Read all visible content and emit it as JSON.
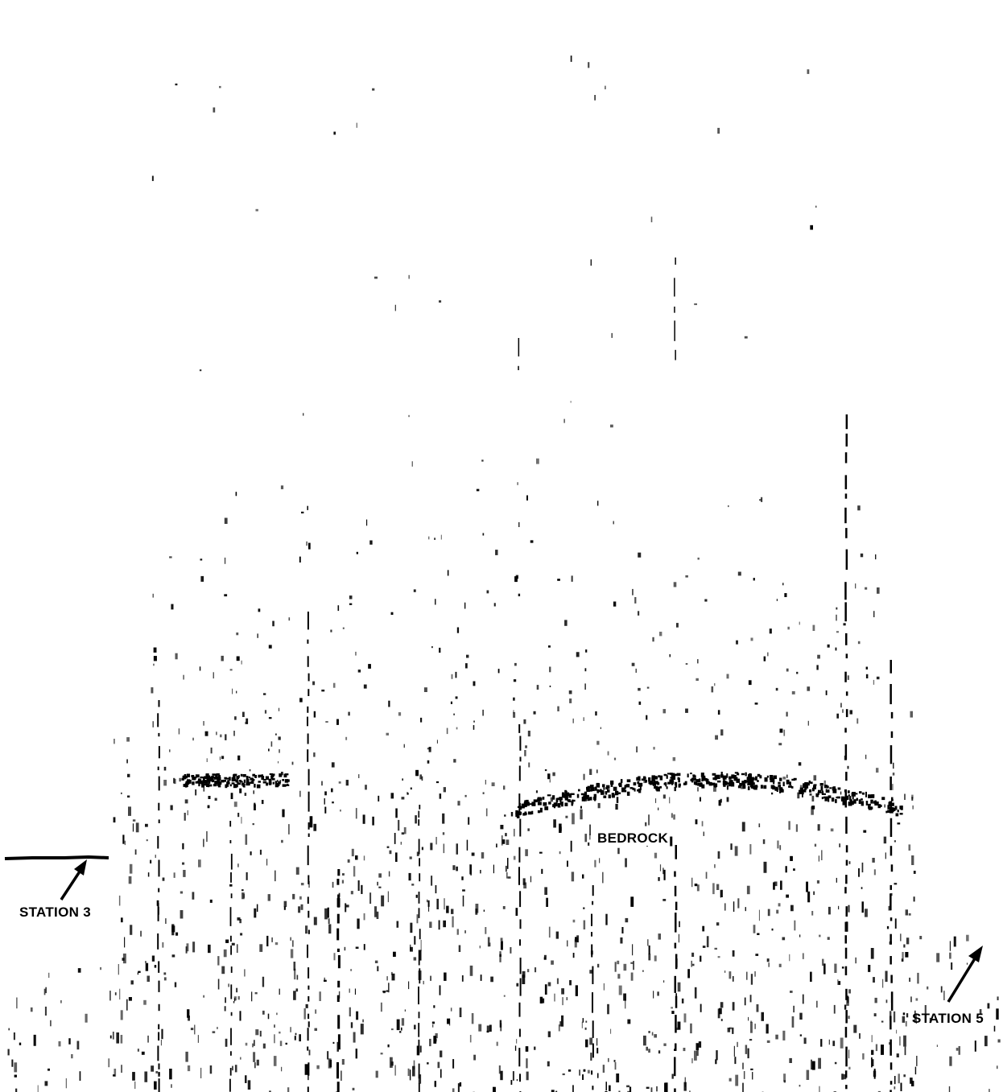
{
  "labels": {
    "station_3": "STATION 3",
    "bedrock": "BEDROCK",
    "station_5": "STATION 5"
  },
  "colors": {
    "ink": "#000000",
    "paper": "#ffffff"
  }
}
